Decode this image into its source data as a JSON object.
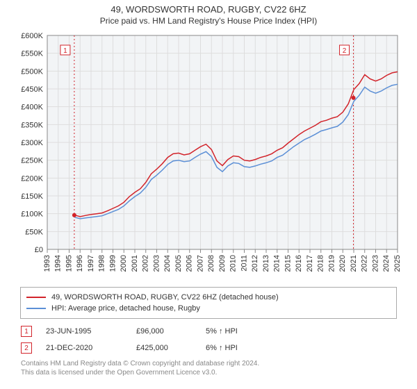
{
  "title": "49, WORDSWORTH ROAD, RUGBY, CV22 6HZ",
  "subtitle": "Price paid vs. HM Land Registry's House Price Index (HPI)",
  "chart": {
    "type": "line",
    "background_color": "#f2f4f6",
    "grid_color": "#dddddd",
    "axis_color": "#888888",
    "tick_fontsize": 11,
    "y": {
      "min": 0,
      "max": 600000,
      "step": 50000,
      "labels": [
        "£0",
        "£50K",
        "£100K",
        "£150K",
        "£200K",
        "£250K",
        "£300K",
        "£350K",
        "£400K",
        "£450K",
        "£500K",
        "£550K",
        "£600K"
      ]
    },
    "x": {
      "min": 1993,
      "max": 2025,
      "step": 1,
      "labels": [
        "1993",
        "1994",
        "1995",
        "1996",
        "1997",
        "1998",
        "1999",
        "2000",
        "2001",
        "2002",
        "2003",
        "2004",
        "2005",
        "2006",
        "2007",
        "2008",
        "2009",
        "2010",
        "2011",
        "2012",
        "2013",
        "2014",
        "2015",
        "2016",
        "2017",
        "2018",
        "2019",
        "2020",
        "2021",
        "2022",
        "2023",
        "2024",
        "2025"
      ]
    },
    "series": [
      {
        "key": "price_paid",
        "label": "49, WORDSWORTH ROAD, RUGBY, CV22 6HZ (detached house)",
        "color": "#d2232a",
        "line_width": 1.5,
        "x": [
          1995.5,
          1996,
          1996.5,
          1997,
          1997.5,
          1998,
          1998.5,
          1999,
          1999.5,
          2000,
          2000.5,
          2001,
          2001.5,
          2002,
          2002.5,
          2003,
          2003.5,
          2004,
          2004.5,
          2005,
          2005.5,
          2006,
          2006.5,
          2007,
          2007.5,
          2008,
          2008.5,
          2009,
          2009.5,
          2010,
          2010.5,
          2011,
          2011.5,
          2012,
          2012.5,
          2013,
          2013.5,
          2014,
          2014.5,
          2015,
          2015.5,
          2016,
          2016.5,
          2017,
          2017.5,
          2018,
          2018.5,
          2019,
          2019.5,
          2020,
          2020.5,
          2021,
          2021.5,
          2022,
          2022.5,
          2023,
          2023.5,
          2024,
          2024.5,
          2025
        ],
        "y": [
          96000,
          92000,
          95000,
          98000,
          100000,
          102000,
          108000,
          115000,
          122000,
          132000,
          148000,
          160000,
          170000,
          188000,
          212000,
          225000,
          240000,
          258000,
          268000,
          270000,
          265000,
          268000,
          278000,
          288000,
          295000,
          280000,
          248000,
          235000,
          252000,
          262000,
          260000,
          250000,
          248000,
          252000,
          258000,
          262000,
          268000,
          278000,
          285000,
          298000,
          310000,
          322000,
          332000,
          340000,
          348000,
          358000,
          362000,
          368000,
          372000,
          385000,
          408000,
          448000,
          465000,
          490000,
          478000,
          472000,
          478000,
          488000,
          495000,
          498000
        ]
      },
      {
        "key": "hpi",
        "label": "HPI: Average price, detached house, Rugby",
        "color": "#5b8fd6",
        "line_width": 1.5,
        "x": [
          1995.5,
          1996,
          1996.5,
          1997,
          1997.5,
          1998,
          1998.5,
          1999,
          1999.5,
          2000,
          2000.5,
          2001,
          2001.5,
          2002,
          2002.5,
          2003,
          2003.5,
          2004,
          2004.5,
          2005,
          2005.5,
          2006,
          2006.5,
          2007,
          2007.5,
          2008,
          2008.5,
          2009,
          2009.5,
          2010,
          2010.5,
          2011,
          2011.5,
          2012,
          2012.5,
          2013,
          2013.5,
          2014,
          2014.5,
          2015,
          2015.5,
          2016,
          2016.5,
          2017,
          2017.5,
          2018,
          2018.5,
          2019,
          2019.5,
          2020,
          2020.5,
          2021,
          2021.5,
          2022,
          2022.5,
          2023,
          2023.5,
          2024,
          2024.5,
          2025
        ],
        "y": [
          90000,
          86000,
          88000,
          90000,
          92000,
          94000,
          100000,
          106000,
          112000,
          122000,
          136000,
          148000,
          158000,
          174000,
          196000,
          208000,
          222000,
          238000,
          248000,
          250000,
          246000,
          248000,
          258000,
          267000,
          274000,
          260000,
          230000,
          218000,
          234000,
          243000,
          241000,
          232000,
          230000,
          234000,
          239000,
          243000,
          248000,
          258000,
          264000,
          276000,
          288000,
          298000,
          308000,
          315000,
          323000,
          332000,
          336000,
          341000,
          345000,
          357000,
          378000,
          415000,
          432000,
          455000,
          444000,
          438000,
          444000,
          453000,
          460000,
          463000
        ]
      }
    ],
    "markers": [
      {
        "num": "1",
        "x": 1995.47,
        "y": 96000,
        "color": "#d2232a"
      },
      {
        "num": "2",
        "x": 2020.97,
        "y": 425000,
        "color": "#d2232a"
      }
    ]
  },
  "legend": [
    {
      "color": "#d2232a",
      "label": "49, WORDSWORTH ROAD, RUGBY, CV22 6HZ (detached house)"
    },
    {
      "color": "#5b8fd6",
      "label": "HPI: Average price, detached house, Rugby"
    }
  ],
  "marker_rows": [
    {
      "badge": "1",
      "badge_color": "#d2232a",
      "date": "23-JUN-1995",
      "price": "£96,000",
      "hpi": "5% ↑ HPI"
    },
    {
      "badge": "2",
      "badge_color": "#d2232a",
      "date": "21-DEC-2020",
      "price": "£425,000",
      "hpi": "6% ↑ HPI"
    }
  ],
  "footer_line1": "Contains HM Land Registry data © Crown copyright and database right 2024.",
  "footer_line2": "This data is licensed under the Open Government Licence v3.0."
}
